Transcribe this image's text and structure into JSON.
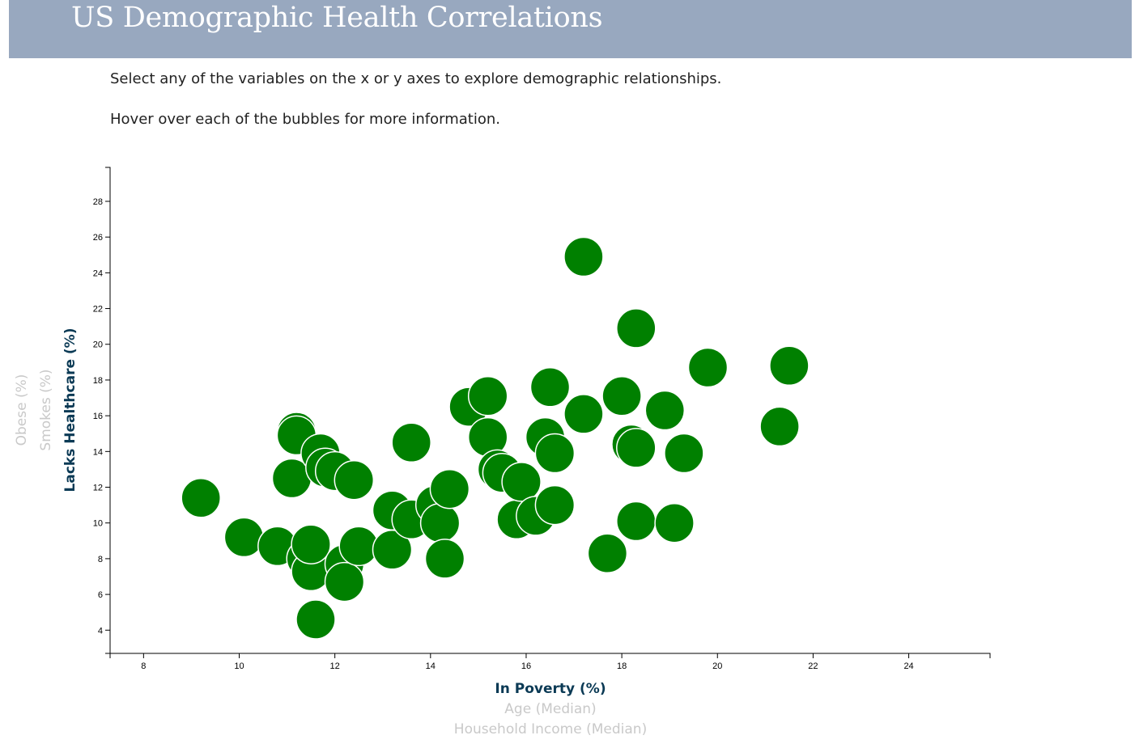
{
  "header": {
    "title": "US Demographic Health Correlations"
  },
  "intro": {
    "line1": "Select any of the variables on the x or y axes to explore demographic relationships.",
    "line2": "Hover over each of the bubbles for more information."
  },
  "colors": {
    "banner": "#98a8bf",
    "bubble_fill": "#008000",
    "bubble_stroke": "#ffffff",
    "active_label": "#0b3a55",
    "inactive_label": "#c9c9c9"
  },
  "chart_data": {
    "type": "scatter",
    "title": "",
    "x_axis": {
      "ticks": [
        8,
        10,
        12,
        14,
        16,
        18,
        20,
        22,
        24
      ],
      "range": [
        7.3,
        25.7
      ],
      "labels": [
        {
          "text": "In Poverty (%)",
          "active": true
        },
        {
          "text": "Age (Median)",
          "active": false
        },
        {
          "text": "Household Income (Median)",
          "active": false
        }
      ]
    },
    "y_axis": {
      "ticks": [
        4,
        6,
        8,
        10,
        12,
        14,
        16,
        18,
        20,
        22,
        24,
        26,
        28
      ],
      "range": [
        2.7,
        29.9
      ],
      "labels": [
        {
          "text": "Lacks Healthcare (%)",
          "active": true
        },
        {
          "text": "Smokes (%)",
          "active": false
        },
        {
          "text": "Obese (%)",
          "active": false
        }
      ]
    },
    "grid": false,
    "points": [
      {
        "x": 9.2,
        "y": 11.4
      },
      {
        "x": 10.1,
        "y": 9.2
      },
      {
        "x": 10.8,
        "y": 8.7
      },
      {
        "x": 11.1,
        "y": 12.5
      },
      {
        "x": 11.2,
        "y": 15.1
      },
      {
        "x": 11.2,
        "y": 14.9
      },
      {
        "x": 11.4,
        "y": 8.0
      },
      {
        "x": 11.5,
        "y": 7.3
      },
      {
        "x": 11.5,
        "y": 8.8
      },
      {
        "x": 11.6,
        "y": 4.6
      },
      {
        "x": 11.7,
        "y": 13.9
      },
      {
        "x": 11.8,
        "y": 13.1
      },
      {
        "x": 12.0,
        "y": 12.9
      },
      {
        "x": 12.2,
        "y": 7.7
      },
      {
        "x": 12.2,
        "y": 6.7
      },
      {
        "x": 12.4,
        "y": 12.4
      },
      {
        "x": 12.5,
        "y": 8.7
      },
      {
        "x": 13.2,
        "y": 10.7
      },
      {
        "x": 13.2,
        "y": 8.5
      },
      {
        "x": 13.6,
        "y": 10.2
      },
      {
        "x": 13.6,
        "y": 14.5
      },
      {
        "x": 14.1,
        "y": 11.0
      },
      {
        "x": 14.2,
        "y": 10.0
      },
      {
        "x": 14.3,
        "y": 8.0
      },
      {
        "x": 14.4,
        "y": 11.9
      },
      {
        "x": 14.8,
        "y": 16.5
      },
      {
        "x": 15.2,
        "y": 17.1
      },
      {
        "x": 15.2,
        "y": 14.8
      },
      {
        "x": 15.4,
        "y": 13.0
      },
      {
        "x": 15.5,
        "y": 12.8
      },
      {
        "x": 15.8,
        "y": 10.2
      },
      {
        "x": 15.9,
        "y": 12.3
      },
      {
        "x": 16.2,
        "y": 10.4
      },
      {
        "x": 16.4,
        "y": 14.8
      },
      {
        "x": 16.5,
        "y": 17.6
      },
      {
        "x": 16.6,
        "y": 13.9
      },
      {
        "x": 16.6,
        "y": 11.0
      },
      {
        "x": 17.2,
        "y": 24.9
      },
      {
        "x": 17.2,
        "y": 16.1
      },
      {
        "x": 17.7,
        "y": 8.3
      },
      {
        "x": 18.0,
        "y": 17.1
      },
      {
        "x": 18.2,
        "y": 14.4
      },
      {
        "x": 18.3,
        "y": 20.9
      },
      {
        "x": 18.3,
        "y": 14.2
      },
      {
        "x": 18.3,
        "y": 10.1
      },
      {
        "x": 18.9,
        "y": 16.3
      },
      {
        "x": 19.1,
        "y": 10.0
      },
      {
        "x": 19.3,
        "y": 13.9
      },
      {
        "x": 19.8,
        "y": 18.7
      },
      {
        "x": 21.3,
        "y": 15.4
      },
      {
        "x": 21.5,
        "y": 18.8
      }
    ]
  }
}
